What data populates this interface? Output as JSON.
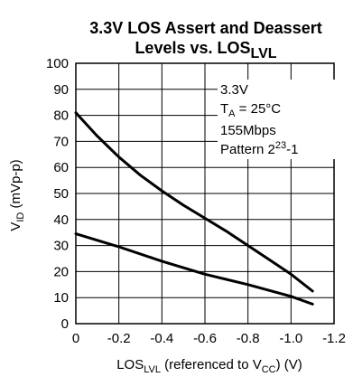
{
  "chart_data": {
    "type": "line",
    "title_line1": "3.3V LOS Assert and Deassert",
    "title_line2_main": "Levels vs. LOS",
    "title_line2_sub": "LVL",
    "xlabel_main": "LOS",
    "xlabel_sub": "LVL",
    "xlabel_mid": " (referenced to V",
    "xlabel_sub2": "CC",
    "xlabel_end": ") (V)",
    "ylabel_main": "V",
    "ylabel_sub": "ID",
    "ylabel_end": " (mVp-p)",
    "xlim": [
      0,
      -1.2
    ],
    "ylim": [
      0,
      100
    ],
    "x_ticks": [
      0,
      -0.2,
      -0.4,
      -0.6,
      -0.8,
      -1.0,
      -1.2
    ],
    "x_tick_labels": [
      "0",
      "-0.2",
      "-0.4",
      "-0.6",
      "-0.8",
      "-1.0",
      "-1.2"
    ],
    "y_ticks": [
      0,
      10,
      20,
      30,
      40,
      50,
      60,
      70,
      80,
      90,
      100
    ],
    "y_tick_labels": [
      "0",
      "10",
      "20",
      "30",
      "40",
      "50",
      "60",
      "70",
      "80",
      "90",
      "100"
    ],
    "grid": true,
    "annotations": {
      "line1": "3.3V",
      "line2_main": "T",
      "line2_sub": "A",
      "line2_end": " = 25°C",
      "line3": "155Mbps",
      "line4_main": "Pattern 2",
      "line4_sup": "23",
      "line4_end": "-1"
    },
    "series": [
      {
        "x": [
          0,
          -0.1,
          -0.2,
          -0.3,
          -0.4,
          -0.5,
          -0.6,
          -0.7,
          -0.8,
          -0.9,
          -1.0,
          -1.1
        ],
        "values": [
          81,
          72,
          64,
          57,
          51,
          45.5,
          40.5,
          35.5,
          30,
          24.5,
          19,
          12.5
        ]
      },
      {
        "x": [
          0,
          -0.2,
          -0.4,
          -0.6,
          -0.8,
          -1.0,
          -1.1
        ],
        "values": [
          34.5,
          29.5,
          24,
          19,
          15,
          10.5,
          7.5
        ]
      }
    ]
  }
}
